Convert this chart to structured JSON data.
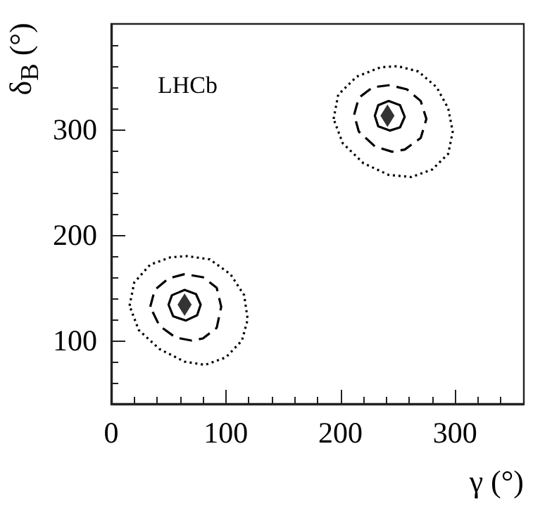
{
  "chart_data": {
    "type": "scatter",
    "xlabel": "γ (°)",
    "ylabel": "δ$_{B}$ (°)",
    "annotations": [
      "LHCb"
    ],
    "xlim": [
      0,
      360
    ],
    "xticks": [
      0,
      100,
      200,
      300
    ],
    "ylim": [
      40,
      400
    ],
    "yticks": [
      100,
      200,
      300
    ],
    "grid": false,
    "marker": "diamond",
    "series": [
      {
        "color": "#000000",
        "x": [
          64,
          241
        ],
        "values": [
          134,
          313
        ]
      }
    ]
  }
}
